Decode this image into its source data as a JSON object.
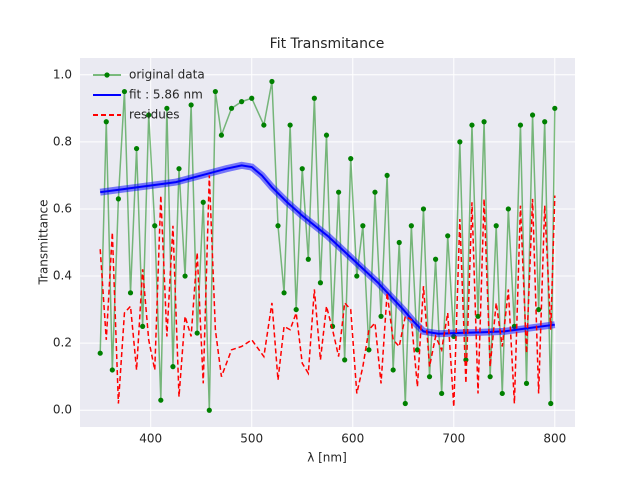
{
  "chart_data": {
    "type": "line",
    "title": "Fit Transmitance",
    "x_label": "λ [nm]",
    "y_label": "Transmittance",
    "xlim": [
      330,
      820
    ],
    "ylim": [
      -0.05,
      1.05
    ],
    "xticks": [
      400,
      500,
      600,
      700,
      800
    ],
    "yticks": [
      {
        "value": 0,
        "label": "0.0"
      },
      0.2,
      0.4,
      0.6,
      0.8,
      {
        "value": 1,
        "label": "1.0"
      }
    ],
    "grid": true,
    "legend": "upper left",
    "series": [
      {
        "name": "original data",
        "color": "#008000",
        "linestyle": "solid",
        "marker": "o",
        "x": [
          350,
          356,
          362,
          368,
          374,
          380,
          386,
          392,
          398,
          404,
          410,
          416,
          422,
          428,
          434,
          440,
          446,
          452,
          458,
          464,
          470,
          480,
          490,
          500,
          512,
          520,
          526,
          532,
          538,
          544,
          550,
          556,
          562,
          568,
          574,
          580,
          586,
          592,
          598,
          604,
          610,
          616,
          622,
          628,
          634,
          640,
          646,
          652,
          658,
          664,
          670,
          676,
          682,
          688,
          694,
          700,
          706,
          712,
          718,
          724,
          730,
          736,
          742,
          748,
          754,
          760,
          766,
          772,
          778,
          784,
          790,
          796,
          800
        ],
        "values": [
          0.17,
          0.86,
          0.12,
          0.63,
          0.95,
          0.35,
          0.78,
          0.25,
          0.88,
          0.55,
          0.03,
          0.9,
          0.13,
          0.72,
          0.4,
          0.91,
          0.23,
          0.62,
          0.0,
          0.95,
          0.82,
          0.9,
          0.92,
          0.93,
          0.85,
          0.98,
          0.55,
          0.35,
          0.85,
          0.3,
          0.72,
          0.45,
          0.93,
          0.38,
          0.82,
          0.25,
          0.65,
          0.15,
          0.75,
          0.4,
          0.55,
          0.18,
          0.65,
          0.28,
          0.7,
          0.12,
          0.5,
          0.02,
          0.55,
          0.18,
          0.6,
          0.1,
          0.45,
          0.05,
          0.52,
          0.22,
          0.8,
          0.15,
          0.85,
          0.28,
          0.86,
          0.1,
          0.55,
          0.05,
          0.6,
          0.25,
          0.85,
          0.08,
          0.88,
          0.3,
          0.86,
          0.02,
          0.9
        ]
      },
      {
        "name": "fit : 5.86 nm",
        "color": "#0000ff",
        "linestyle": "solid",
        "x": [
          350,
          375,
          400,
          425,
          450,
          475,
          490,
          500,
          510,
          520,
          535,
          550,
          575,
          600,
          625,
          650,
          660,
          670,
          685,
          700,
          725,
          750,
          775,
          800
        ],
        "values": [
          0.65,
          0.66,
          0.67,
          0.68,
          0.7,
          0.72,
          0.73,
          0.725,
          0.7,
          0.665,
          0.62,
          0.58,
          0.52,
          0.45,
          0.38,
          0.3,
          0.265,
          0.235,
          0.228,
          0.23,
          0.232,
          0.235,
          0.245,
          0.255
        ]
      },
      {
        "name": "residues",
        "color": "#ff0000",
        "linestyle": "dashed",
        "x": [
          350,
          356,
          362,
          368,
          374,
          380,
          386,
          392,
          398,
          404,
          410,
          416,
          422,
          428,
          434,
          440,
          446,
          452,
          458,
          464,
          470,
          480,
          490,
          500,
          512,
          520,
          526,
          532,
          538,
          544,
          550,
          556,
          562,
          568,
          574,
          580,
          586,
          592,
          598,
          604,
          610,
          616,
          622,
          628,
          634,
          640,
          646,
          652,
          658,
          664,
          670,
          676,
          682,
          688,
          694,
          700,
          706,
          712,
          718,
          724,
          730,
          736,
          742,
          748,
          754,
          760,
          766,
          772,
          778,
          784,
          790,
          796,
          800
        ],
        "values": [
          0.48,
          0.21,
          0.53,
          0.02,
          0.29,
          0.31,
          0.12,
          0.42,
          0.21,
          0.12,
          0.64,
          0.22,
          0.55,
          0.04,
          0.28,
          0.22,
          0.47,
          0.08,
          0.7,
          0.24,
          0.1,
          0.18,
          0.19,
          0.21,
          0.16,
          0.32,
          0.09,
          0.25,
          0.24,
          0.29,
          0.14,
          0.11,
          0.36,
          0.15,
          0.31,
          0.24,
          0.16,
          0.32,
          0.3,
          0.05,
          0.13,
          0.24,
          0.26,
          0.08,
          0.35,
          0.21,
          0.19,
          0.28,
          0.27,
          0.07,
          0.37,
          0.13,
          0.22,
          0.18,
          0.29,
          0.01,
          0.57,
          0.08,
          0.62,
          0.05,
          0.63,
          0.13,
          0.32,
          0.19,
          0.36,
          0.02,
          0.61,
          0.17,
          0.63,
          0.05,
          0.61,
          0.24,
          0.64
        ]
      }
    ]
  }
}
